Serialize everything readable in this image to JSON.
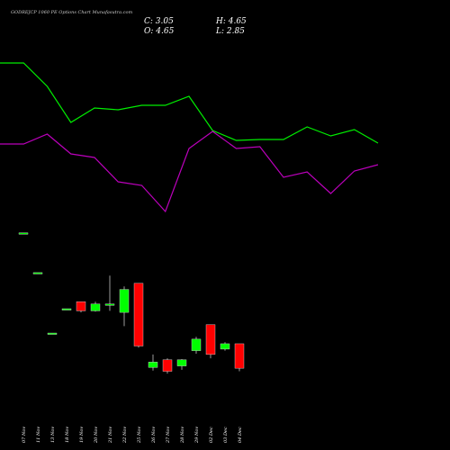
{
  "header": {
    "title": "GODREJCP 1060 PE Options Chart Munafasutra.com",
    "close": "C: 3.05",
    "open": "O: 4.65",
    "high": "H: 4.65",
    "low": "L: 2.85"
  },
  "chart_data": [
    {
      "type": "line",
      "categories": [
        null,
        null,
        null,
        null,
        null,
        null,
        null,
        null,
        null,
        null,
        null,
        null,
        null,
        null,
        null,
        null,
        null
      ],
      "series": [
        {
          "color": "#00ee00",
          "values": [
            18,
            18,
            15.4,
            11.4,
            13,
            12.8,
            13.3,
            13.3,
            14.3,
            10.5,
            9.4,
            9.5,
            9.5,
            10.9,
            9.9,
            10.6,
            9.1
          ]
        },
        {
          "color": "#bb00bb",
          "values": [
            9,
            9,
            10.1,
            7.9,
            7.5,
            4.8,
            4.4,
            1.5,
            8.5,
            10.4,
            8.5,
            8.7,
            5.3,
            5.9,
            3.5,
            6,
            6.7
          ]
        }
      ],
      "ylim": [
        0,
        25
      ]
    },
    {
      "type": "candlestick",
      "categories": [
        "07 Nov",
        "11 Nov",
        "13 Nov",
        "18 Nov",
        "19 Nov",
        "20 Nov",
        "21 Nov",
        "22 Nov",
        "25 Nov",
        "26 Nov",
        "27 Nov",
        "28 Nov",
        "29 Nov",
        "02 Dec",
        "03 Dec",
        "04 Dec"
      ],
      "open": [
        11.9,
        9.3,
        5.35,
        6.94,
        7.4,
        6.8,
        7.2,
        6.7,
        8.6,
        3.1,
        3.6,
        3.2,
        4.2,
        5.9,
        4.3,
        4.65
      ],
      "high": [
        11.9,
        9.3,
        5.35,
        6.94,
        7.4,
        7.4,
        9.1,
        8.4,
        8.6,
        3.95,
        3.7,
        3.65,
        5.1,
        5.9,
        4.75,
        4.65
      ],
      "low": [
        11.9,
        9.3,
        5.35,
        6.94,
        6.7,
        6.75,
        6.8,
        5.8,
        4.4,
        2.9,
        2.7,
        2.95,
        4.0,
        3.7,
        4.2,
        2.85
      ],
      "close": [
        11.9,
        9.3,
        5.35,
        6.94,
        6.8,
        7.25,
        7.25,
        8.2,
        4.5,
        3.45,
        2.85,
        3.6,
        4.95,
        3.95,
        4.65,
        3.05
      ],
      "up_color": "#00ff00",
      "down_color": "#ff0000",
      "ylim": [
        1.5,
        14
      ]
    }
  ]
}
